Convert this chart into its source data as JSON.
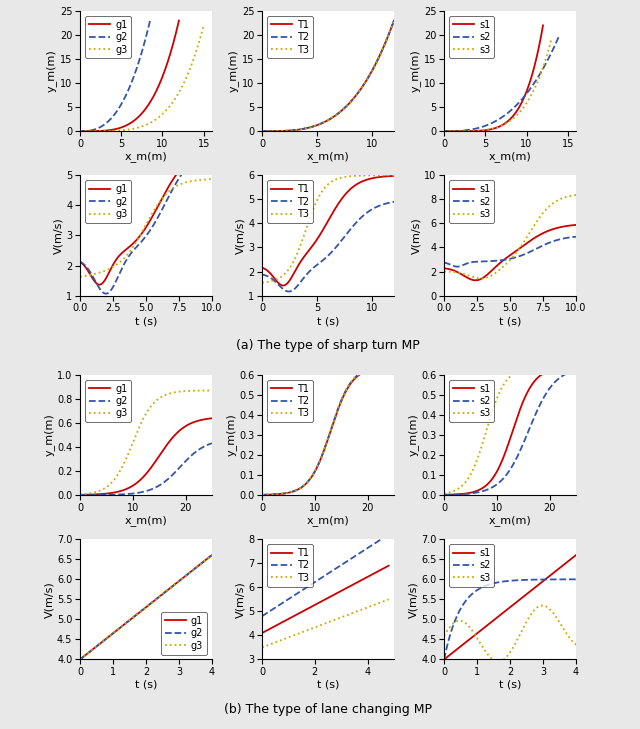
{
  "fig_width": 6.4,
  "fig_height": 7.29,
  "colors": {
    "line1": "#cc0000",
    "line2": "#3355aa",
    "line3": "#ccaa00"
  },
  "subtitle_a": "(a) The type of sharp turn MP",
  "subtitle_b": "(b) The type of lane changing MP",
  "sharp_xy": {
    "col1": {
      "labels": [
        "g1",
        "g2",
        "g3"
      ],
      "xlim": [
        0,
        16
      ],
      "ylim": [
        0,
        25
      ],
      "xlabel": "x_m(m)",
      "ylabel": "y_m(m)"
    },
    "col2": {
      "labels": [
        "T1",
        "T2",
        "T3"
      ],
      "xlim": [
        0,
        12
      ],
      "ylim": [
        0,
        25
      ],
      "xlabel": "x_m(m)",
      "ylabel": "y_m(m)"
    },
    "col3": {
      "labels": [
        "s1",
        "s2",
        "s3"
      ],
      "xlim": [
        0,
        16
      ],
      "ylim": [
        0,
        25
      ],
      "xlabel": "x_m(m)",
      "ylabel": "y_m(m)"
    }
  },
  "sharp_v": {
    "col1": {
      "labels": [
        "g1",
        "g2",
        "g3"
      ],
      "xlim": [
        0,
        10
      ],
      "ylim": [
        1,
        5
      ],
      "xlabel": "t (s)",
      "ylabel": "V(m/s)"
    },
    "col2": {
      "labels": [
        "T1",
        "T2",
        "T3"
      ],
      "xlim": [
        0,
        12
      ],
      "ylim": [
        1,
        6
      ],
      "xlabel": "t (s)",
      "ylabel": "V(m/s)"
    },
    "col3": {
      "labels": [
        "s1",
        "s2",
        "s3"
      ],
      "xlim": [
        0,
        10
      ],
      "ylim": [
        0,
        10
      ],
      "xlabel": "t (s)",
      "ylabel": "V(m/s)"
    }
  },
  "lane_xy": {
    "col1": {
      "labels": [
        "g1",
        "g2",
        "g3"
      ],
      "xlim": [
        0,
        25
      ],
      "ylim": [
        0,
        1.0
      ],
      "xlabel": "x_m(m)",
      "ylabel": "y_m(m)"
    },
    "col2": {
      "labels": [
        "T1",
        "T2",
        "T3"
      ],
      "xlim": [
        0,
        25
      ],
      "ylim": [
        0,
        0.6
      ],
      "xlabel": "x_m(m)",
      "ylabel": "y_m(m)"
    },
    "col3": {
      "labels": [
        "s1",
        "s2",
        "s3"
      ],
      "xlim": [
        0,
        25
      ],
      "ylim": [
        0,
        0.6
      ],
      "xlabel": "x_m(m)",
      "ylabel": "y_m(m)"
    }
  },
  "lane_v": {
    "col1": {
      "labels": [
        "g1",
        "g2",
        "g3"
      ],
      "xlim": [
        0,
        4
      ],
      "ylim": [
        4,
        7
      ],
      "xlabel": "t (s)",
      "ylabel": "V(m/s)"
    },
    "col2": {
      "labels": [
        "T1",
        "T2",
        "T3"
      ],
      "xlim": [
        0,
        5
      ],
      "ylim": [
        3,
        8
      ],
      "xlabel": "t (s)",
      "ylabel": "V(m/s)"
    },
    "col3": {
      "labels": [
        "s1",
        "s2",
        "s3"
      ],
      "xlim": [
        0,
        4
      ],
      "ylim": [
        4,
        7
      ],
      "xlabel": "t (s)",
      "ylabel": "V(m/s)"
    }
  }
}
